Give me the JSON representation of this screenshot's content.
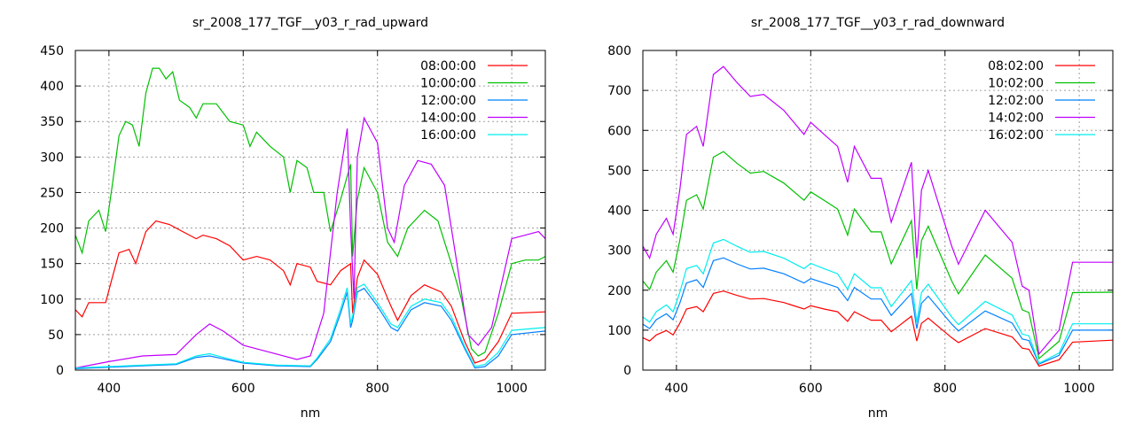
{
  "chart_data": [
    {
      "type": "line",
      "title": "sr_2008_177_TGF__y03_r_rad_upward",
      "xlabel": "nm",
      "ylabel": "",
      "xlim": [
        350,
        1050
      ],
      "ylim": [
        0,
        450
      ],
      "xticks": [
        400,
        600,
        800,
        1000
      ],
      "yticks": [
        0,
        50,
        100,
        150,
        200,
        250,
        300,
        350,
        400,
        450
      ],
      "grid": true,
      "legend_position": "top-right",
      "series": [
        {
          "name": "08:00:00",
          "color": "#ff0000",
          "points": [
            [
              350,
              85
            ],
            [
              360,
              75
            ],
            [
              370,
              95
            ],
            [
              395,
              95
            ],
            [
              405,
              130
            ],
            [
              415,
              165
            ],
            [
              430,
              170
            ],
            [
              440,
              150
            ],
            [
              455,
              195
            ],
            [
              470,
              210
            ],
            [
              490,
              205
            ],
            [
              510,
              195
            ],
            [
              530,
              185
            ],
            [
              540,
              190
            ],
            [
              560,
              185
            ],
            [
              580,
              175
            ],
            [
              600,
              155
            ],
            [
              620,
              160
            ],
            [
              640,
              155
            ],
            [
              660,
              140
            ],
            [
              670,
              120
            ],
            [
              680,
              150
            ],
            [
              700,
              145
            ],
            [
              710,
              125
            ],
            [
              730,
              120
            ],
            [
              745,
              140
            ],
            [
              760,
              150
            ],
            [
              763,
              80
            ],
            [
              770,
              130
            ],
            [
              780,
              155
            ],
            [
              800,
              135
            ],
            [
              820,
              90
            ],
            [
              830,
              70
            ],
            [
              850,
              105
            ],
            [
              870,
              120
            ],
            [
              895,
              110
            ],
            [
              910,
              90
            ],
            [
              930,
              40
            ],
            [
              945,
              10
            ],
            [
              960,
              15
            ],
            [
              980,
              40
            ],
            [
              1000,
              80
            ],
            [
              1050,
              82
            ]
          ]
        },
        {
          "name": "10:00:00",
          "color": "#00c000",
          "points": [
            [
              350,
              190
            ],
            [
              360,
              165
            ],
            [
              370,
              210
            ],
            [
              385,
              225
            ],
            [
              395,
              195
            ],
            [
              405,
              260
            ],
            [
              415,
              330
            ],
            [
              425,
              350
            ],
            [
              435,
              345
            ],
            [
              445,
              315
            ],
            [
              455,
              390
            ],
            [
              465,
              425
            ],
            [
              475,
              425
            ],
            [
              485,
              410
            ],
            [
              495,
              420
            ],
            [
              505,
              380
            ],
            [
              520,
              370
            ],
            [
              530,
              355
            ],
            [
              540,
              375
            ],
            [
              560,
              375
            ],
            [
              580,
              350
            ],
            [
              600,
              345
            ],
            [
              610,
              315
            ],
            [
              620,
              335
            ],
            [
              640,
              315
            ],
            [
              660,
              300
            ],
            [
              670,
              250
            ],
            [
              680,
              295
            ],
            [
              695,
              285
            ],
            [
              705,
              250
            ],
            [
              720,
              250
            ],
            [
              730,
              195
            ],
            [
              745,
              240
            ],
            [
              760,
              290
            ],
            [
              763,
              160
            ],
            [
              770,
              240
            ],
            [
              780,
              285
            ],
            [
              800,
              250
            ],
            [
              815,
              180
            ],
            [
              830,
              160
            ],
            [
              845,
              200
            ],
            [
              870,
              225
            ],
            [
              890,
              210
            ],
            [
              910,
              150
            ],
            [
              925,
              100
            ],
            [
              940,
              30
            ],
            [
              950,
              20
            ],
            [
              960,
              25
            ],
            [
              980,
              80
            ],
            [
              1000,
              150
            ],
            [
              1020,
              155
            ],
            [
              1040,
              155
            ],
            [
              1050,
              160
            ]
          ]
        },
        {
          "name": "12:00:00",
          "color": "#0080ff",
          "points": [
            [
              350,
              2
            ],
            [
              450,
              6
            ],
            [
              500,
              8
            ],
            [
              530,
              18
            ],
            [
              550,
              20
            ],
            [
              570,
              16
            ],
            [
              600,
              10
            ],
            [
              650,
              6
            ],
            [
              700,
              5
            ],
            [
              710,
              15
            ],
            [
              730,
              40
            ],
            [
              745,
              80
            ],
            [
              755,
              110
            ],
            [
              760,
              60
            ],
            [
              763,
              70
            ],
            [
              770,
              110
            ],
            [
              780,
              115
            ],
            [
              800,
              90
            ],
            [
              820,
              60
            ],
            [
              830,
              55
            ],
            [
              850,
              85
            ],
            [
              870,
              95
            ],
            [
              895,
              90
            ],
            [
              910,
              70
            ],
            [
              930,
              30
            ],
            [
              945,
              3
            ],
            [
              960,
              5
            ],
            [
              980,
              20
            ],
            [
              1000,
              50
            ],
            [
              1050,
              55
            ]
          ]
        },
        {
          "name": "14:00:00",
          "color": "#c000ff",
          "points": [
            [
              350,
              3
            ],
            [
              400,
              12
            ],
            [
              450,
              20
            ],
            [
              500,
              22
            ],
            [
              530,
              50
            ],
            [
              550,
              65
            ],
            [
              570,
              55
            ],
            [
              600,
              35
            ],
            [
              640,
              25
            ],
            [
              680,
              15
            ],
            [
              700,
              20
            ],
            [
              720,
              80
            ],
            [
              740,
              250
            ],
            [
              755,
              340
            ],
            [
              760,
              200
            ],
            [
              765,
              100
            ],
            [
              770,
              300
            ],
            [
              780,
              355
            ],
            [
              800,
              320
            ],
            [
              815,
              200
            ],
            [
              825,
              180
            ],
            [
              840,
              260
            ],
            [
              860,
              295
            ],
            [
              880,
              290
            ],
            [
              900,
              260
            ],
            [
              915,
              170
            ],
            [
              935,
              50
            ],
            [
              950,
              35
            ],
            [
              970,
              60
            ],
            [
              1000,
              185
            ],
            [
              1040,
              195
            ],
            [
              1050,
              185
            ]
          ]
        },
        {
          "name": "16:00:00",
          "color": "#00eeee",
          "points": [
            [
              350,
              3
            ],
            [
              450,
              7
            ],
            [
              500,
              9
            ],
            [
              530,
              20
            ],
            [
              550,
              23
            ],
            [
              570,
              18
            ],
            [
              600,
              11
            ],
            [
              650,
              7
            ],
            [
              700,
              6
            ],
            [
              710,
              17
            ],
            [
              730,
              44
            ],
            [
              745,
              86
            ],
            [
              755,
              116
            ],
            [
              760,
              66
            ],
            [
              763,
              76
            ],
            [
              770,
              116
            ],
            [
              780,
              121
            ],
            [
              800,
              95
            ],
            [
              820,
              65
            ],
            [
              830,
              60
            ],
            [
              850,
              90
            ],
            [
              870,
              100
            ],
            [
              895,
              95
            ],
            [
              910,
              75
            ],
            [
              930,
              33
            ],
            [
              945,
              5
            ],
            [
              960,
              8
            ],
            [
              980,
              25
            ],
            [
              1000,
              56
            ],
            [
              1050,
              60
            ]
          ]
        }
      ]
    },
    {
      "type": "line",
      "title": "sr_2008_177_TGF__y03_r_rad_downward",
      "xlabel": "nm",
      "ylabel": "",
      "xlim": [
        350,
        1050
      ],
      "ylim": [
        0,
        800
      ],
      "xticks": [
        400,
        600,
        800,
        1000
      ],
      "yticks": [
        0,
        100,
        200,
        300,
        400,
        500,
        600,
        700,
        800
      ],
      "grid": true,
      "legend_position": "top-right",
      "x": [
        350,
        360,
        370,
        385,
        395,
        405,
        415,
        430,
        440,
        455,
        470,
        490,
        510,
        530,
        560,
        590,
        600,
        620,
        640,
        655,
        665,
        690,
        705,
        720,
        750,
        758,
        765,
        775,
        810,
        820,
        860,
        900,
        915,
        925,
        940,
        970,
        990,
        1050
      ],
      "series": [
        {
          "name": "08:02:00",
          "color": "#ff0000",
          "values": [
            81,
            73,
            88,
            99,
            88,
            117,
            153,
            159,
            146,
            192,
            198,
            187,
            178,
            179,
            169,
            153,
            161,
            153,
            146,
            122,
            146,
            125,
            125,
            96,
            135,
            73,
            117,
            130,
            81,
            69,
            104,
            83,
            55,
            52,
            10,
            26,
            70,
            75
          ]
        },
        {
          "name": "10:02:00",
          "color": "#00c000",
          "values": [
            223,
            202,
            245,
            274,
            245,
            324,
            425,
            439,
            403,
            533,
            547,
            518,
            493,
            497,
            468,
            425,
            446,
            425,
            403,
            338,
            403,
            346,
            346,
            266,
            374,
            202,
            324,
            360,
            223,
            191,
            288,
            230,
            151,
            144,
            29,
            72,
            194,
            195
          ]
        },
        {
          "name": "12:02:00",
          "color": "#0080ff",
          "values": [
            115,
            104,
            126,
            141,
            126,
            167,
            218,
            226,
            207,
            274,
            281,
            266,
            253,
            255,
            241,
            218,
            229,
            218,
            207,
            174,
            207,
            178,
            178,
            137,
            192,
            104,
            167,
            185,
            115,
            98,
            148,
            118,
            78,
            74,
            15,
            37,
            100,
            100
          ]
        },
        {
          "name": "14:02:00",
          "color": "#c000ff",
          "values": [
            310,
            280,
            340,
            380,
            340,
            450,
            590,
            610,
            560,
            740,
            760,
            720,
            685,
            690,
            650,
            590,
            620,
            590,
            560,
            470,
            560,
            480,
            480,
            370,
            520,
            280,
            450,
            500,
            310,
            265,
            400,
            320,
            210,
            200,
            40,
            100,
            270,
            270
          ]
        },
        {
          "name": "16:02:00",
          "color": "#00eeee",
          "values": [
            133,
            120,
            146,
            163,
            146,
            194,
            254,
            262,
            241,
            318,
            327,
            310,
            295,
            297,
            280,
            254,
            267,
            254,
            241,
            202,
            241,
            206,
            206,
            159,
            224,
            120,
            194,
            215,
            133,
            114,
            172,
            138,
            90,
            86,
            17,
            43,
            116,
            116
          ]
        }
      ]
    }
  ]
}
